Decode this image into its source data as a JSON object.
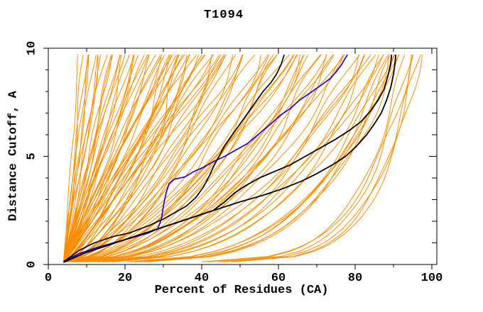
{
  "chart_data": {
    "type": "line",
    "title": "T1094",
    "xlabel": "Percent of Residues (CA)",
    "ylabel": "Distance Cutoff, A",
    "xlim": [
      0,
      101.3
    ],
    "ylim": [
      0,
      10
    ],
    "grid": false,
    "legend": "none",
    "x_ticks_major": [
      0,
      20,
      40,
      60,
      80,
      100
    ],
    "x_ticks_minor": [
      10,
      30,
      50,
      70,
      90
    ],
    "x_tick_labels": [
      "0",
      "20",
      "40",
      "60",
      "80",
      "100"
    ],
    "y_ticks_major": [
      0,
      5,
      10
    ],
    "y_ticks_minor": [
      1,
      2,
      3,
      4,
      6,
      7,
      8,
      9
    ],
    "y_tick_labels": [
      "0",
      "5",
      "10"
    ],
    "colors": {
      "ensemble_orange": "#ff8c00",
      "reference_blue": "#2200dd",
      "reference_black": "#000000",
      "axis": "#000000",
      "background": "#ffffff"
    },
    "series": [
      {
        "name": "blue-reference-curve",
        "color": "#2200dd",
        "width": 1.7,
        "points": [
          [
            4,
            0.15
          ],
          [
            8,
            0.5
          ],
          [
            12,
            0.75
          ],
          [
            17,
            1.0
          ],
          [
            22,
            1.25
          ],
          [
            26,
            1.45
          ],
          [
            28.5,
            1.65
          ],
          [
            29.5,
            2.1
          ],
          [
            30,
            2.7
          ],
          [
            30.7,
            3.3
          ],
          [
            31.5,
            3.75
          ],
          [
            33,
            3.95
          ],
          [
            35.6,
            4.05
          ],
          [
            38,
            4.3
          ],
          [
            40.5,
            4.5
          ],
          [
            43,
            4.75
          ],
          [
            46,
            5.0
          ],
          [
            49,
            5.3
          ],
          [
            52,
            5.6
          ],
          [
            54,
            5.9
          ],
          [
            56,
            6.2
          ],
          [
            58,
            6.5
          ],
          [
            60.5,
            6.9
          ],
          [
            63,
            7.2
          ],
          [
            65.5,
            7.6
          ],
          [
            68,
            7.9
          ],
          [
            70,
            8.15
          ],
          [
            72,
            8.4
          ],
          [
            73.5,
            8.6
          ],
          [
            75,
            8.9
          ],
          [
            76.3,
            9.2
          ],
          [
            77.3,
            9.5
          ],
          [
            78,
            9.7
          ]
        ]
      },
      {
        "name": "black-reference-curve-steep",
        "color": "#000000",
        "width": 1.7,
        "points": [
          [
            4,
            0.12
          ],
          [
            8,
            0.65
          ],
          [
            12,
            1.0
          ],
          [
            17,
            1.3
          ],
          [
            21,
            1.45
          ],
          [
            26,
            1.78
          ],
          [
            30,
            2.1
          ],
          [
            33,
            2.4
          ],
          [
            36,
            2.7
          ],
          [
            38.5,
            3.1
          ],
          [
            40.5,
            3.6
          ],
          [
            42,
            4.1
          ],
          [
            43.3,
            4.6
          ],
          [
            44.5,
            5.0
          ],
          [
            46,
            5.5
          ],
          [
            48,
            6.0
          ],
          [
            50,
            6.5
          ],
          [
            52,
            7.0
          ],
          [
            54,
            7.5
          ],
          [
            56,
            8.0
          ],
          [
            58,
            8.4
          ],
          [
            59.5,
            8.8
          ],
          [
            60.7,
            9.25
          ],
          [
            61.5,
            9.7
          ]
        ]
      },
      {
        "name": "black-reference-curve-right-upper",
        "color": "#000000",
        "width": 1.8,
        "points": [
          [
            4,
            0.1
          ],
          [
            9,
            0.5
          ],
          [
            14,
            0.8
          ],
          [
            20,
            1.15
          ],
          [
            26,
            1.5
          ],
          [
            32,
            1.85
          ],
          [
            38,
            2.2
          ],
          [
            43,
            2.5
          ],
          [
            46,
            2.9
          ],
          [
            48.5,
            3.3
          ],
          [
            51,
            3.6
          ],
          [
            55,
            4.0
          ],
          [
            59,
            4.3
          ],
          [
            63,
            4.6
          ],
          [
            67,
            5.0
          ],
          [
            71,
            5.4
          ],
          [
            75,
            5.8
          ],
          [
            78.5,
            6.2
          ],
          [
            81.5,
            6.6
          ],
          [
            84,
            7.1
          ],
          [
            86,
            7.6
          ],
          [
            87.5,
            8.1
          ],
          [
            88.5,
            8.7
          ],
          [
            89.2,
            9.2
          ],
          [
            89.5,
            9.7
          ]
        ]
      },
      {
        "name": "black-reference-curve-right-lower",
        "color": "#000000",
        "width": 1.8,
        "points": [
          [
            4,
            0.1
          ],
          [
            9,
            0.5
          ],
          [
            14,
            0.8
          ],
          [
            20,
            1.15
          ],
          [
            26,
            1.5
          ],
          [
            32,
            1.85
          ],
          [
            38,
            2.2
          ],
          [
            44,
            2.55
          ],
          [
            50,
            2.9
          ],
          [
            56,
            3.2
          ],
          [
            61,
            3.5
          ],
          [
            66,
            3.85
          ],
          [
            70,
            4.2
          ],
          [
            74,
            4.6
          ],
          [
            77.5,
            5.0
          ],
          [
            80.5,
            5.5
          ],
          [
            83,
            6.0
          ],
          [
            85,
            6.5
          ],
          [
            86.8,
            7.0
          ],
          [
            88.2,
            7.6
          ],
          [
            89.3,
            8.2
          ],
          [
            90,
            8.8
          ],
          [
            90.4,
            9.3
          ],
          [
            90.6,
            9.7
          ]
        ]
      }
    ],
    "orange_ensemble": {
      "name": "model-curves-ensemble",
      "color": "#ff8c00",
      "width": 1,
      "count": 110,
      "start_point": [
        4,
        0.12
      ],
      "top_cutoff_y": 9.7,
      "generator": "x(y) = 4 + (x_top-4)*((y-0.1)/9.6)^k + a*sin(1.1*y+ph)*(y/9.7)^0.8",
      "curve_params_format": [
        "x_top",
        "k",
        "a",
        "ph"
      ],
      "curves": [
        [
          8,
          1.0,
          0.3,
          0.5
        ],
        [
          9,
          0.85,
          0.5,
          2.1
        ],
        [
          10,
          1.1,
          0.4,
          4.0
        ],
        [
          11,
          0.9,
          0.6,
          1.2
        ],
        [
          12,
          1.05,
          0.5,
          3.3
        ],
        [
          13,
          0.8,
          0.7,
          5.1
        ],
        [
          14,
          0.95,
          0.4,
          0.8
        ],
        [
          15,
          1.15,
          0.6,
          2.6
        ],
        [
          16,
          0.85,
          0.8,
          4.4
        ],
        [
          17,
          1.0,
          0.5,
          1.6
        ],
        [
          18,
          0.9,
          0.7,
          3.8
        ],
        [
          19,
          1.1,
          0.4,
          5.6
        ],
        [
          20,
          0.8,
          0.9,
          0.3
        ],
        [
          21,
          0.95,
          0.6,
          2.2
        ],
        [
          22,
          1.05,
          0.5,
          4.1
        ],
        [
          23,
          0.85,
          0.8,
          5.9
        ],
        [
          24,
          1.0,
          0.6,
          1.0
        ],
        [
          25,
          0.9,
          1.0,
          2.9
        ],
        [
          26,
          1.1,
          0.5,
          4.7
        ],
        [
          27,
          0.8,
          0.7,
          0.1
        ],
        [
          28,
          0.95,
          0.9,
          1.9
        ],
        [
          29,
          1.05,
          0.6,
          3.7
        ],
        [
          30,
          0.85,
          1.1,
          5.5
        ],
        [
          31,
          1.0,
          0.7,
          0.7
        ],
        [
          32,
          0.9,
          0.9,
          2.5
        ],
        [
          33,
          1.1,
          0.6,
          4.3
        ],
        [
          35,
          0.8,
          1.2,
          6.1
        ],
        [
          36,
          0.95,
          0.8,
          1.3
        ],
        [
          38,
          1.05,
          0.7,
          3.1
        ],
        [
          39,
          0.85,
          1.3,
          4.9
        ],
        [
          41,
          1.0,
          0.9,
          0.4
        ],
        [
          43,
          0.9,
          1.1,
          2.0
        ],
        [
          45,
          0.75,
          1.0,
          3.9
        ],
        [
          47,
          0.88,
          1.2,
          5.7
        ],
        [
          10.5,
          0.95,
          0.45,
          5.0
        ],
        [
          13.5,
          1.08,
          0.55,
          0.2
        ],
        [
          16.5,
          0.88,
          0.65,
          1.9
        ],
        [
          19.5,
          1.02,
          0.5,
          3.7
        ],
        [
          22.5,
          0.92,
          0.75,
          5.5
        ],
        [
          25.5,
          1.06,
          0.6,
          1.05
        ],
        [
          28.5,
          0.86,
          0.85,
          2.85
        ],
        [
          31.5,
          0.98,
          0.7,
          4.65
        ],
        [
          34.5,
          0.9,
          0.9,
          6.0
        ],
        [
          37.5,
          1.04,
          0.75,
          0.55
        ],
        [
          40.5,
          0.84,
          1.0,
          2.35
        ],
        [
          44,
          0.96,
          0.85,
          4.15
        ],
        [
          46.5,
          1.1,
          0.7,
          5.95
        ],
        [
          32,
          0.62,
          1.2,
          1.5
        ],
        [
          34,
          0.7,
          1.0,
          3.2
        ],
        [
          36,
          0.55,
          1.4,
          5.0
        ],
        [
          38,
          0.68,
          1.1,
          0.6
        ],
        [
          40,
          0.6,
          1.5,
          2.4
        ],
        [
          42,
          0.72,
          1.2,
          4.2
        ],
        [
          44,
          0.58,
          1.6,
          6.0
        ],
        [
          46,
          0.66,
          1.3,
          1.1
        ],
        [
          48,
          0.6,
          1.1,
          2.8
        ],
        [
          50,
          0.7,
          1.4,
          4.6
        ],
        [
          52,
          0.55,
          1.2,
          0.2
        ],
        [
          54,
          0.64,
          1.5,
          1.8
        ],
        [
          56,
          0.58,
          1.3,
          3.6
        ],
        [
          58,
          0.68,
          1.1,
          5.4
        ],
        [
          60,
          0.52,
          1.6,
          0.9
        ],
        [
          62,
          0.62,
          1.2,
          2.7
        ],
        [
          64,
          0.56,
          1.4,
          4.5
        ],
        [
          66,
          0.65,
          1.1,
          6.2
        ],
        [
          35,
          0.5,
          1.7,
          1.4
        ],
        [
          45,
          0.48,
          1.5,
          3.0
        ],
        [
          55,
          0.46,
          1.8,
          4.8
        ],
        [
          33,
          0.75,
          0.9,
          0.35
        ],
        [
          49,
          0.52,
          1.3,
          5.8
        ],
        [
          59,
          0.49,
          1.6,
          2.3
        ],
        [
          63,
          0.58,
          1.0,
          4.0
        ],
        [
          51,
          0.68,
          1.4,
          5.2
        ],
        [
          60,
          0.44,
          1.5,
          1.7
        ],
        [
          63,
          0.5,
          1.2,
          3.5
        ],
        [
          66,
          0.42,
          1.6,
          5.3
        ],
        [
          68,
          0.48,
          1.3,
          0.8
        ],
        [
          70,
          0.44,
          1.5,
          2.6
        ],
        [
          72,
          0.5,
          1.1,
          4.4
        ],
        [
          74,
          0.4,
          1.7,
          6.1
        ],
        [
          75,
          0.46,
          1.2,
          1.2
        ],
        [
          76,
          0.42,
          1.4,
          3.0
        ],
        [
          77,
          0.48,
          1.0,
          4.9
        ],
        [
          69,
          0.52,
          1.3,
          0.15
        ],
        [
          71,
          0.38,
          1.8,
          2.0
        ],
        [
          73,
          0.45,
          1.5,
          3.8
        ],
        [
          67,
          0.4,
          1.2,
          5.6
        ],
        [
          78,
          0.4,
          1.3,
          1.0
        ],
        [
          80,
          0.35,
          1.5,
          2.8
        ],
        [
          82,
          0.38,
          1.2,
          4.6
        ],
        [
          84,
          0.32,
          1.6,
          0.4
        ],
        [
          85,
          0.36,
          1.3,
          2.2
        ],
        [
          86,
          0.3,
          1.5,
          4.0
        ],
        [
          87,
          0.34,
          1.2,
          5.8
        ],
        [
          88,
          0.31,
          1.4,
          1.5
        ],
        [
          83,
          0.42,
          1.1,
          3.3
        ],
        [
          81,
          0.33,
          1.6,
          5.1
        ],
        [
          88.5,
          0.24,
          1.0,
          2.0
        ],
        [
          89,
          0.26,
          1.2,
          3.8
        ],
        [
          89.5,
          0.22,
          1.0,
          5.6
        ],
        [
          90,
          0.25,
          1.3,
          1.1
        ],
        [
          90.5,
          0.23,
          1.1,
          2.9
        ],
        [
          91,
          0.27,
          0.9,
          4.7
        ],
        [
          91.5,
          0.24,
          1.2,
          0.5
        ],
        [
          93,
          0.14,
          0.8,
          1.8
        ],
        [
          94,
          0.13,
          1.0,
          3.6
        ],
        [
          95,
          0.15,
          0.9,
          5.4
        ],
        [
          95.8,
          0.12,
          0.8,
          0.9
        ],
        [
          96.4,
          0.13,
          1.0,
          2.7
        ],
        [
          97,
          0.12,
          0.9,
          4.5
        ]
      ]
    }
  }
}
